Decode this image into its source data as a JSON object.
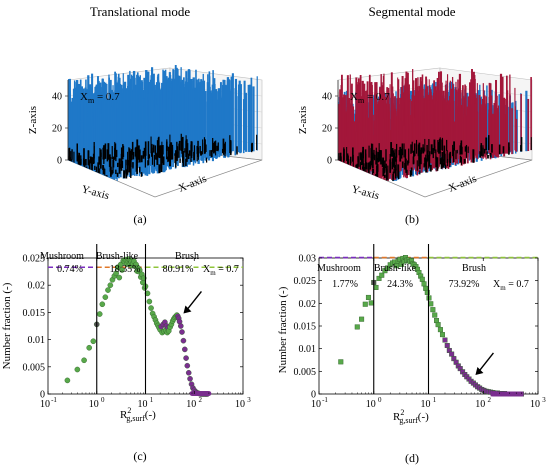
{
  "header": {
    "left_title": "Translational mode",
    "right_title": "Segmental mode"
  },
  "colors": {
    "blue": "#1f78c8",
    "crimson": "#a3173a",
    "black": "#000000",
    "purple_dash": "#7b2fbf",
    "orange_dash": "#e0782a",
    "green_dash": "#8fc43a",
    "marker_green": "#58a84a",
    "marker_purple": "#7a2e8f",
    "marker_gray": "#555555"
  },
  "chart_data": [
    {
      "type": "scatter3d",
      "panel_label": "(a)",
      "annotation": "X",
      "annotation_sub": "m",
      "annotation_value": " = 0.7",
      "zlabel": "Z-axis",
      "xlabel": "X-axis",
      "ylabel": "Y-axis",
      "zticks": [
        "0",
        "20",
        "40"
      ],
      "zlim": [
        0,
        50
      ],
      "layers": [
        "blue",
        "black"
      ]
    },
    {
      "type": "scatter3d",
      "panel_label": "(b)",
      "annotation": "X",
      "annotation_sub": "m",
      "annotation_value": " = 0.7",
      "zlabel": "Z-axis",
      "xlabel": "X-axis",
      "ylabel": "Y-axis",
      "zticks": [
        "0",
        "20",
        "40"
      ],
      "zlim": [
        0,
        50
      ],
      "layers": [
        "blue",
        "crimson",
        "black"
      ]
    },
    {
      "type": "scatter",
      "panel_label": "(c)",
      "xscale": "log",
      "xlim": [
        0.1,
        1000
      ],
      "ylim": [
        0,
        0.025
      ],
      "xticks": [
        "10",
        "10",
        "10",
        "10",
        "10"
      ],
      "xtick_exponents": [
        "-1",
        "0",
        "1",
        "2",
        "3"
      ],
      "yticks": [
        "0",
        "0.005",
        "0.01",
        "0.015",
        "0.02",
        "0.025"
      ],
      "ylabel": "Number fraction (-)",
      "xlabel_main": "R",
      "xlabel_sup": "2",
      "xlabel_sub": "g,surf",
      "xlabel_unit": "(-)",
      "regions": [
        "Mushroom",
        "Brush-like",
        "Brush"
      ],
      "percentages": [
        "0.74%",
        "18.35%",
        "80.91%"
      ],
      "boundaries": [
        1,
        10
      ],
      "dashed_level": 0.0233,
      "xm_label": "X",
      "xm_sub": "m",
      "xm_value": " = 0.7",
      "points": [
        [
          0.25,
          0.0025
        ],
        [
          0.4,
          0.0045
        ],
        [
          0.55,
          0.0062
        ],
        [
          0.7,
          0.0085
        ],
        [
          0.85,
          0.0097
        ],
        [
          1.0,
          0.0128
        ],
        [
          1.15,
          0.0147
        ],
        [
          1.3,
          0.0165
        ],
        [
          1.5,
          0.0178
        ],
        [
          1.7,
          0.0191
        ],
        [
          1.9,
          0.02
        ],
        [
          2.1,
          0.021
        ],
        [
          2.3,
          0.0217
        ],
        [
          2.5,
          0.0222
        ],
        [
          2.7,
          0.0233
        ],
        [
          2.9,
          0.0214
        ],
        [
          3.1,
          0.0238
        ],
        [
          3.3,
          0.0228
        ],
        [
          3.5,
          0.0245
        ],
        [
          3.7,
          0.0243
        ],
        [
          3.9,
          0.0247
        ],
        [
          4.1,
          0.0239
        ],
        [
          4.3,
          0.0245
        ],
        [
          4.5,
          0.0248
        ],
        [
          4.7,
          0.0238
        ],
        [
          4.9,
          0.0246
        ],
        [
          5.1,
          0.0243
        ],
        [
          5.3,
          0.0236
        ],
        [
          5.5,
          0.024
        ],
        [
          5.8,
          0.0244
        ],
        [
          6.1,
          0.0235
        ],
        [
          6.4,
          0.0238
        ],
        [
          6.7,
          0.0226
        ],
        [
          7.0,
          0.0232
        ],
        [
          7.3,
          0.0225
        ],
        [
          7.6,
          0.0228
        ],
        [
          8.0,
          0.0215
        ],
        [
          8.4,
          0.022
        ],
        [
          8.8,
          0.0205
        ],
        [
          9.2,
          0.0213
        ],
        [
          9.6,
          0.0195
        ],
        [
          10.0,
          0.0198
        ],
        [
          11,
          0.0185
        ],
        [
          12,
          0.017
        ],
        [
          13,
          0.0158
        ],
        [
          14,
          0.0148
        ],
        [
          15,
          0.0142
        ],
        [
          16,
          0.0136
        ],
        [
          17,
          0.013
        ],
        [
          18,
          0.0126
        ],
        [
          19,
          0.0122
        ],
        [
          20,
          0.0118
        ],
        [
          21,
          0.0124
        ],
        [
          22,
          0.0113
        ],
        [
          23,
          0.0128
        ],
        [
          24,
          0.0115
        ],
        [
          25,
          0.0132
        ],
        [
          26,
          0.0117
        ],
        [
          27,
          0.0125
        ],
        [
          28,
          0.0113
        ],
        [
          29,
          0.0121
        ],
        [
          30,
          0.0116
        ],
        [
          32,
          0.0123
        ],
        [
          34,
          0.0128
        ],
        [
          36,
          0.0134
        ],
        [
          38,
          0.0138
        ],
        [
          40,
          0.0141
        ],
        [
          42,
          0.0143
        ],
        [
          44,
          0.0145
        ],
        [
          46,
          0.0143
        ],
        [
          48,
          0.0139
        ],
        [
          50,
          0.0133
        ],
        [
          53,
          0.0125
        ],
        [
          56,
          0.0114
        ],
        [
          60,
          0.0098
        ],
        [
          64,
          0.0082
        ],
        [
          68,
          0.0066
        ],
        [
          72,
          0.0052
        ],
        [
          77,
          0.0039
        ],
        [
          82,
          0.0028
        ],
        [
          88,
          0.0018
        ],
        [
          94,
          0.0011
        ],
        [
          100,
          0.0007
        ],
        [
          108,
          0.0004
        ],
        [
          116,
          0.0002
        ],
        [
          125,
          0.0001
        ],
        [
          135,
          0.0
        ],
        [
          145,
          0.0
        ],
        [
          155,
          0.0
        ],
        [
          165,
          0.0
        ],
        [
          175,
          0.0
        ],
        [
          185,
          0.0
        ]
      ],
      "arrow_target": [
        60,
        0.0148
      ]
    },
    {
      "type": "scatter",
      "panel_label": "(d)",
      "xscale": "log",
      "xlim": [
        0.1,
        1000
      ],
      "ylim": [
        0,
        0.03
      ],
      "xticks": [
        "10",
        "10",
        "10",
        "10",
        "10"
      ],
      "xtick_exponents": [
        "-1",
        "0",
        "1",
        "2",
        "3"
      ],
      "yticks": [
        "0",
        "0.005",
        "0.01",
        "0.015",
        "0.02",
        "0.025",
        "0.03"
      ],
      "ylabel": "Number fraction (-)",
      "xlabel_main": "R",
      "xlabel_sup": "2",
      "xlabel_sub": "g,surf",
      "xlabel_unit": "(-)",
      "regions": [
        "Mushroom",
        "Brush-like",
        "Brush"
      ],
      "percentages": [
        "1.77%",
        "24.3%",
        "73.92%"
      ],
      "boundaries": [
        1,
        10
      ],
      "dashed_level": 0.0301,
      "xm_label": "X",
      "xm_sub": "m",
      "xm_value": " = 0.7",
      "points": [
        [
          0.25,
          0.0071
        ],
        [
          0.5,
          0.0148
        ],
        [
          0.6,
          0.0165
        ],
        [
          0.7,
          0.0198
        ],
        [
          0.8,
          0.0213
        ],
        [
          0.9,
          0.0201
        ],
        [
          1.0,
          0.0246
        ],
        [
          1.1,
          0.0235
        ],
        [
          1.25,
          0.0255
        ],
        [
          1.4,
          0.0262
        ],
        [
          1.6,
          0.0272
        ],
        [
          1.8,
          0.0278
        ],
        [
          2.0,
          0.0285
        ],
        [
          2.2,
          0.0289
        ],
        [
          2.4,
          0.0291
        ],
        [
          2.6,
          0.0283
        ],
        [
          2.8,
          0.0293
        ],
        [
          3.0,
          0.0297
        ],
        [
          3.2,
          0.0286
        ],
        [
          3.4,
          0.0299
        ],
        [
          3.6,
          0.0293
        ],
        [
          3.8,
          0.0301
        ],
        [
          4.0,
          0.0295
        ],
        [
          4.3,
          0.0296
        ],
        [
          4.6,
          0.0292
        ],
        [
          4.9,
          0.0294
        ],
        [
          5.2,
          0.0287
        ],
        [
          5.5,
          0.0285
        ],
        [
          5.9,
          0.0281
        ],
        [
          6.3,
          0.0275
        ],
        [
          6.7,
          0.0268
        ],
        [
          7.2,
          0.026
        ],
        [
          7.7,
          0.0253
        ],
        [
          8.3,
          0.0243
        ],
        [
          8.9,
          0.0233
        ],
        [
          9.5,
          0.0224
        ],
        [
          10.2,
          0.0212
        ],
        [
          11,
          0.0199
        ],
        [
          12,
          0.0186
        ],
        [
          13,
          0.0174
        ],
        [
          14,
          0.0162
        ],
        [
          15,
          0.0153
        ],
        [
          16.5,
          0.0142
        ],
        [
          18,
          0.0131
        ],
        [
          20,
          0.0119
        ],
        [
          22,
          0.0107
        ],
        [
          24,
          0.0096
        ],
        [
          26.5,
          0.0088
        ],
        [
          29,
          0.0078
        ],
        [
          32,
          0.007
        ],
        [
          35,
          0.0062
        ],
        [
          38,
          0.0056
        ],
        [
          42,
          0.0049
        ],
        [
          46,
          0.0043
        ],
        [
          50,
          0.0038
        ],
        [
          55,
          0.0033
        ],
        [
          60,
          0.0028
        ],
        [
          66,
          0.0024
        ],
        [
          72,
          0.002
        ],
        [
          79,
          0.0016
        ],
        [
          86,
          0.0013
        ],
        [
          94,
          0.001
        ],
        [
          103,
          0.0008
        ],
        [
          113,
          0.0006
        ],
        [
          124,
          0.0005
        ],
        [
          136,
          0.0004
        ],
        [
          150,
          0.0003
        ],
        [
          165,
          0.0002
        ],
        [
          182,
          0.0002
        ],
        [
          200,
          0.0001
        ],
        [
          220,
          0.0001
        ],
        [
          245,
          0.0001
        ],
        [
          270,
          0.0
        ],
        [
          300,
          0.0
        ],
        [
          330,
          0.0
        ],
        [
          370,
          0.0
        ],
        [
          410,
          0.0
        ],
        [
          450,
          0.0
        ],
        [
          500,
          0.0
        ]
      ],
      "arrow_target": [
        72,
        0.0042
      ]
    }
  ]
}
